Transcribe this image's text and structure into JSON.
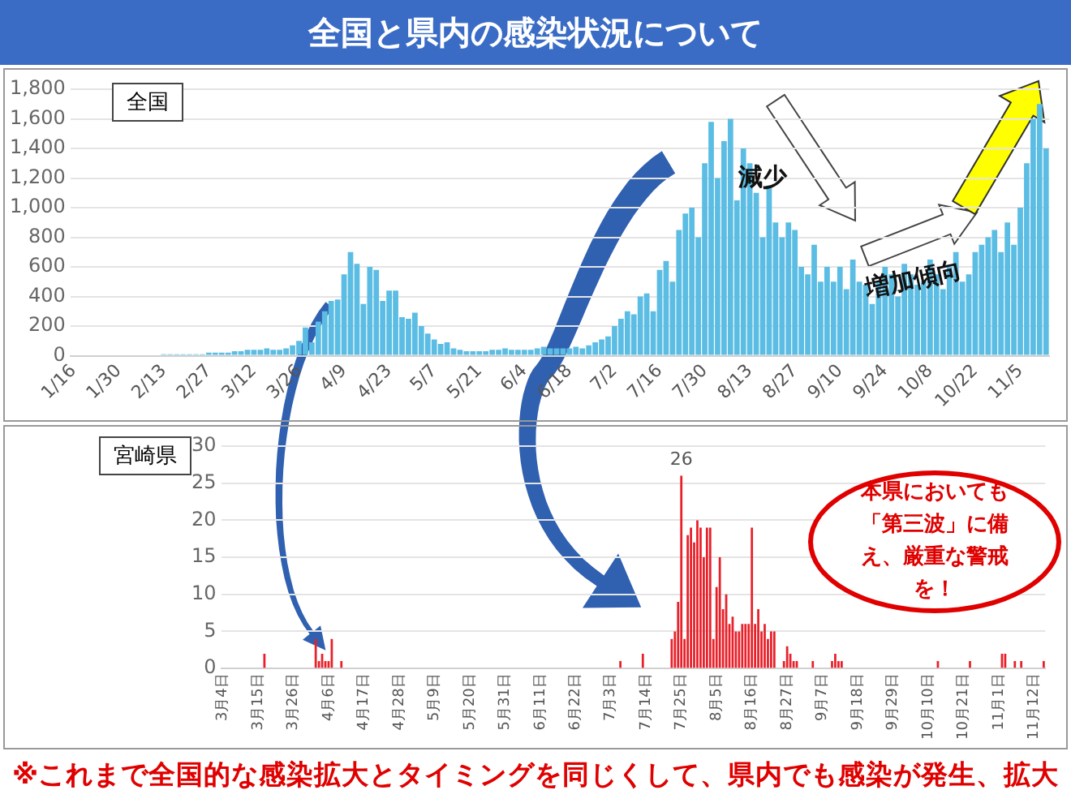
{
  "chart_data": [
    {
      "type": "bar",
      "title": "全国",
      "categories": [
        "1/16",
        null,
        null,
        null,
        null,
        null,
        null,
        "1/30",
        null,
        null,
        null,
        null,
        null,
        null,
        "2/13",
        null,
        null,
        null,
        null,
        null,
        null,
        "2/27",
        null,
        null,
        null,
        null,
        null,
        null,
        "3/12",
        null,
        null,
        null,
        null,
        null,
        null,
        "3/26",
        null,
        null,
        null,
        null,
        null,
        null,
        "4/9",
        null,
        null,
        null,
        null,
        null,
        null,
        "4/23",
        null,
        null,
        null,
        null,
        null,
        null,
        "5/7",
        null,
        null,
        null,
        null,
        null,
        null,
        "5/21",
        null,
        null,
        null,
        null,
        null,
        null,
        "6/4",
        null,
        null,
        null,
        null,
        null,
        null,
        "6/18",
        null,
        null,
        null,
        null,
        null,
        null,
        "7/2",
        null,
        null,
        null,
        null,
        null,
        null,
        "7/16",
        null,
        null,
        null,
        null,
        null,
        null,
        "7/30",
        null,
        null,
        null,
        null,
        null,
        null,
        "8/13",
        null,
        null,
        null,
        null,
        null,
        null,
        "8/27",
        null,
        null,
        null,
        null,
        null,
        null,
        "9/10",
        null,
        null,
        null,
        null,
        null,
        null,
        "9/24",
        null,
        null,
        null,
        null,
        null,
        null,
        "10/8",
        null,
        null,
        null,
        null,
        null,
        null,
        "10/22",
        null,
        null,
        null,
        null,
        null,
        null,
        "11/5",
        null,
        null,
        null,
        null
      ],
      "values": [
        0,
        0,
        0,
        0,
        0,
        0,
        0,
        0,
        0,
        0,
        0,
        0,
        0,
        0,
        10,
        10,
        10,
        10,
        10,
        10,
        10,
        20,
        20,
        20,
        20,
        30,
        30,
        40,
        40,
        40,
        50,
        40,
        40,
        50,
        70,
        100,
        190,
        90,
        230,
        300,
        370,
        380,
        550,
        700,
        620,
        350,
        600,
        580,
        370,
        440,
        440,
        260,
        250,
        290,
        200,
        150,
        110,
        80,
        90,
        50,
        40,
        30,
        30,
        30,
        30,
        40,
        40,
        50,
        40,
        40,
        40,
        40,
        50,
        60,
        50,
        50,
        50,
        50,
        60,
        50,
        70,
        90,
        110,
        130,
        200,
        250,
        300,
        280,
        400,
        420,
        300,
        580,
        640,
        500,
        850,
        960,
        1000,
        800,
        1300,
        1580,
        1200,
        1450,
        1600,
        1050,
        1400,
        1300,
        1100,
        800,
        1150,
        900,
        800,
        900,
        850,
        600,
        550,
        750,
        500,
        600,
        500,
        600,
        450,
        650,
        500,
        480,
        350,
        500,
        600,
        550,
        400,
        620,
        550,
        480,
        500,
        650,
        550,
        450,
        600,
        700,
        500,
        550,
        700,
        750,
        800,
        850,
        700,
        900,
        750,
        1000,
        1300,
        1600,
        1700,
        1400
      ],
      "color": "#5bbde4",
      "ylim": [
        0,
        1800
      ],
      "yticks": [
        0,
        {
          "value": 200,
          "label": "200"
        },
        {
          "value": 400,
          "label": "400"
        },
        {
          "value": 600,
          "label": "600"
        },
        {
          "value": 800,
          "label": "800"
        },
        {
          "value": 1000,
          "label": "1,000"
        },
        {
          "value": 1200,
          "label": "1,200"
        },
        {
          "value": 1400,
          "label": "1,400"
        },
        {
          "value": 1600,
          "label": "1,600"
        },
        {
          "value": 1800,
          "label": "1,800"
        }
      ],
      "grid": "y",
      "annotations": [
        "全国と県内の感染状況について",
        "減少",
        "増加傾向"
      ]
    },
    {
      "type": "bar",
      "title": "宮崎県",
      "categories": [
        "3月4日",
        null,
        null,
        null,
        null,
        null,
        null,
        null,
        null,
        null,
        null,
        "3月15日",
        null,
        null,
        null,
        null,
        null,
        null,
        null,
        null,
        null,
        null,
        "3月26日",
        null,
        null,
        null,
        null,
        null,
        null,
        null,
        null,
        null,
        null,
        "4月6日",
        null,
        null,
        null,
        null,
        null,
        null,
        null,
        null,
        null,
        null,
        "4月17日",
        null,
        null,
        null,
        null,
        null,
        null,
        null,
        null,
        null,
        null,
        "4月28日",
        null,
        null,
        null,
        null,
        null,
        null,
        null,
        null,
        null,
        null,
        "5月9日",
        null,
        null,
        null,
        null,
        null,
        null,
        null,
        null,
        null,
        null,
        "5月20日",
        null,
        null,
        null,
        null,
        null,
        null,
        null,
        null,
        null,
        null,
        "5月31日",
        null,
        null,
        null,
        null,
        null,
        null,
        null,
        null,
        null,
        null,
        "6月11日",
        null,
        null,
        null,
        null,
        null,
        null,
        null,
        null,
        null,
        null,
        "6月22日",
        null,
        null,
        null,
        null,
        null,
        null,
        null,
        null,
        null,
        null,
        "7月3日",
        null,
        null,
        null,
        null,
        null,
        null,
        null,
        null,
        null,
        null,
        "7月14日",
        null,
        null,
        null,
        null,
        null,
        null,
        null,
        null,
        null,
        null,
        "7月25日",
        null,
        null,
        null,
        null,
        null,
        null,
        null,
        null,
        null,
        null,
        "8月5日",
        null,
        null,
        null,
        null,
        null,
        null,
        null,
        null,
        null,
        null,
        "8月16日",
        null,
        null,
        null,
        null,
        null,
        null,
        null,
        null,
        null,
        null,
        "8月27日",
        null,
        null,
        null,
        null,
        null,
        null,
        null,
        null,
        null,
        null,
        "9月7日",
        null,
        null,
        null,
        null,
        null,
        null,
        null,
        null,
        null,
        null,
        "9月18日",
        null,
        null,
        null,
        null,
        null,
        null,
        null,
        null,
        null,
        null,
        "9月29日",
        null,
        null,
        null,
        null,
        null,
        null,
        null,
        null,
        null,
        null,
        "10月10日",
        null,
        null,
        null,
        null,
        null,
        null,
        null,
        null,
        null,
        null,
        "10月21日",
        null,
        null,
        null,
        null,
        null,
        null,
        null,
        null,
        null,
        null,
        "11月1日",
        null,
        null,
        null,
        null,
        null,
        null,
        null,
        null,
        null,
        null,
        "11月12日",
        null,
        null,
        null
      ],
      "values": [
        0,
        0,
        0,
        0,
        0,
        0,
        0,
        0,
        0,
        0,
        0,
        0,
        0,
        2,
        0,
        0,
        0,
        0,
        0,
        0,
        0,
        0,
        0,
        0,
        0,
        0,
        0,
        0,
        0,
        4,
        1,
        2,
        1,
        1,
        4,
        0,
        0,
        1,
        0,
        0,
        0,
        0,
        0,
        0,
        0,
        0,
        0,
        0,
        0,
        0,
        0,
        0,
        0,
        0,
        0,
        0,
        0,
        0,
        0,
        0,
        0,
        0,
        0,
        0,
        0,
        0,
        0,
        0,
        0,
        0,
        0,
        0,
        0,
        0,
        0,
        0,
        0,
        0,
        0,
        0,
        0,
        0,
        0,
        0,
        0,
        0,
        0,
        0,
        0,
        0,
        0,
        0,
        0,
        0,
        0,
        0,
        0,
        0,
        0,
        0,
        0,
        0,
        0,
        0,
        0,
        0,
        0,
        0,
        0,
        0,
        0,
        0,
        0,
        0,
        0,
        0,
        0,
        0,
        0,
        0,
        0,
        0,
        0,
        0,
        1,
        0,
        0,
        0,
        0,
        0,
        0,
        2,
        0,
        0,
        0,
        0,
        0,
        0,
        0,
        0,
        4,
        5,
        9,
        26,
        4,
        18,
        19,
        17,
        20,
        19,
        15,
        19,
        19,
        4,
        11,
        15,
        8,
        10,
        6,
        7,
        5,
        5,
        6,
        6,
        6,
        19,
        6,
        8,
        5,
        6,
        4,
        5,
        5,
        0,
        0,
        1,
        3,
        2,
        1,
        1,
        0,
        0,
        0,
        0,
        1,
        0,
        0,
        0,
        0,
        0,
        1,
        2,
        1,
        1,
        0,
        0,
        0,
        0,
        0,
        0,
        0,
        0,
        0,
        0,
        0,
        0,
        0,
        0,
        0,
        0,
        0,
        0,
        0,
        0,
        0,
        0,
        0,
        0,
        0,
        0,
        0,
        0,
        0,
        1,
        0,
        0,
        0,
        0,
        0,
        0,
        0,
        0,
        0,
        1,
        0,
        0,
        0,
        0,
        0,
        0,
        0,
        0,
        0,
        2,
        2,
        0,
        0,
        1,
        0,
        1,
        0,
        0,
        0,
        0,
        0,
        0,
        1
      ],
      "value_labels": [
        null,
        null,
        null,
        null,
        null,
        null,
        null,
        null,
        null,
        null,
        null,
        null,
        null,
        null,
        null,
        null,
        null,
        null,
        null,
        null,
        null,
        null,
        null,
        null,
        null,
        null,
        null,
        null,
        null,
        null,
        null,
        null,
        null,
        null,
        null,
        null,
        null,
        null,
        null,
        null,
        null,
        null,
        null,
        null,
        null,
        null,
        null,
        null,
        null,
        null,
        null,
        null,
        null,
        null,
        null,
        null,
        null,
        null,
        null,
        null,
        null,
        null,
        null,
        null,
        null,
        null,
        null,
        null,
        null,
        null,
        null,
        null,
        null,
        null,
        null,
        null,
        null,
        null,
        null,
        null,
        null,
        null,
        null,
        null,
        null,
        null,
        null,
        null,
        null,
        null,
        null,
        null,
        null,
        null,
        null,
        null,
        null,
        null,
        null,
        null,
        null,
        null,
        null,
        null,
        null,
        null,
        null,
        null,
        null,
        null,
        null,
        null,
        null,
        null,
        null,
        null,
        null,
        null,
        null,
        null,
        null,
        null,
        null,
        null,
        null,
        null,
        null,
        null,
        null,
        null,
        null,
        null,
        null,
        null,
        null,
        null,
        null,
        null,
        null,
        null,
        null,
        null,
        null,
        "26",
        null,
        null,
        null,
        null,
        null,
        null,
        null,
        null,
        null,
        null,
        null,
        null,
        null,
        null,
        null,
        null,
        null,
        null,
        null,
        null,
        null,
        null,
        null,
        null,
        null,
        null,
        null,
        null,
        null,
        null,
        null,
        null,
        null,
        null,
        null,
        null,
        null,
        null,
        null,
        null,
        null,
        null,
        null,
        null,
        null,
        null,
        null,
        null,
        null,
        null,
        null,
        null,
        null,
        null,
        null,
        null,
        null,
        null,
        null,
        null,
        null,
        null,
        null,
        null,
        null,
        null,
        null,
        null,
        null,
        null,
        null,
        null,
        null,
        null,
        null,
        null,
        null,
        null,
        null,
        null,
        null,
        null,
        null,
        null,
        null,
        null,
        null,
        null,
        null,
        null,
        null,
        null,
        null,
        null,
        null,
        null,
        null,
        null,
        null,
        null,
        null,
        null,
        null,
        null,
        null,
        null,
        null,
        null,
        null,
        null,
        null,
        null,
        null
      ],
      "color": "#e8202a",
      "ylim": [
        0,
        30
      ],
      "yticks": [
        0,
        5,
        10,
        15,
        20,
        25,
        30
      ],
      "grid": "y",
      "annotations": [
        "本県においても「第三波」に備え、厳重な警戒を！",
        "※これまで全国的な感染拡大とタイミングを同じくして、県内でも感染が発生、拡大"
      ]
    }
  ]
}
